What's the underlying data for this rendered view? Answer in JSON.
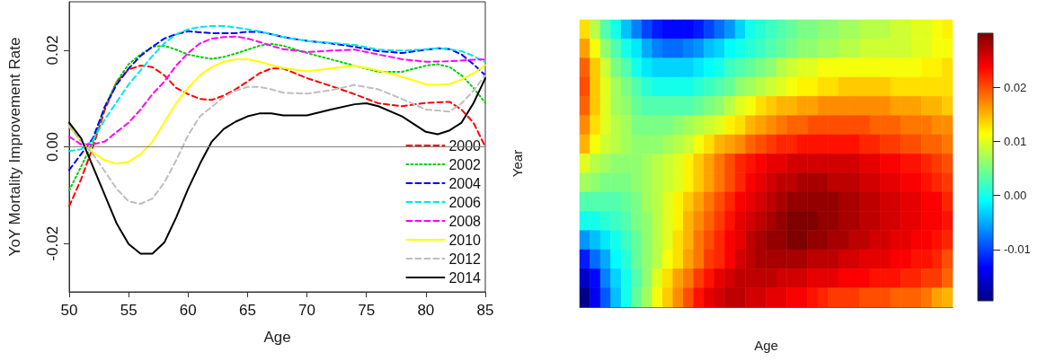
{
  "chart_data": [
    {
      "type": "line",
      "xlabel": "Age",
      "ylabel": "YoY Mortality Improvement Rate",
      "xlim": [
        50,
        85
      ],
      "xticks": [
        50,
        55,
        60,
        65,
        70,
        75,
        80,
        85
      ],
      "ylim": [
        -0.03,
        0.03
      ],
      "yticks": [
        {
          "value": -0.02,
          "label": "-0.02"
        },
        {
          "value": 0,
          "label": "0.00"
        },
        {
          "value": 0.02,
          "label": "0.02"
        }
      ],
      "grid": false,
      "legend": "bottom right",
      "marker": "none",
      "ref_lines": [
        {
          "axis": "y",
          "value": 0,
          "label": null,
          "color": "#808080"
        }
      ],
      "series": [
        {
          "name": "2000",
          "color": "#ff0000",
          "line_style": "dashed",
          "x": [
            50,
            51,
            52,
            53,
            54,
            55,
            56,
            57,
            58,
            59,
            60,
            61,
            62,
            63,
            64,
            65,
            66,
            67,
            68,
            69,
            70,
            72,
            74,
            76,
            78,
            80,
            82,
            83,
            84,
            85
          ],
          "values": [
            -0.0123,
            -0.0067,
            0.0,
            0.0077,
            0.0135,
            0.016,
            0.0168,
            0.0165,
            0.0148,
            0.0122,
            0.0109,
            0.0099,
            0.0097,
            0.0106,
            0.0119,
            0.0135,
            0.0152,
            0.0162,
            0.0162,
            0.0152,
            0.0142,
            0.0126,
            0.0109,
            0.009,
            0.0084,
            0.0091,
            0.0093,
            0.0077,
            0.005,
            0.0
          ]
        },
        {
          "name": "2002",
          "color": "#00cd00",
          "line_style": "dotted",
          "x": [
            50,
            51,
            52,
            53,
            54,
            55,
            56,
            57,
            58,
            59,
            60,
            61,
            62,
            63,
            64,
            65,
            66,
            67,
            68,
            70,
            72,
            74,
            76,
            78,
            80,
            81,
            82,
            83,
            84,
            85
          ],
          "values": [
            -0.009,
            -0.0041,
            0.0011,
            0.0083,
            0.0135,
            0.0171,
            0.0191,
            0.0207,
            0.0209,
            0.0201,
            0.0191,
            0.0186,
            0.0182,
            0.0186,
            0.0193,
            0.0201,
            0.0209,
            0.0213,
            0.0209,
            0.0194,
            0.0181,
            0.0168,
            0.0155,
            0.0155,
            0.0168,
            0.0171,
            0.0165,
            0.0148,
            0.0122,
            0.0091
          ]
        },
        {
          "name": "2004",
          "color": "#0000ff",
          "line_style": "dashed",
          "x": [
            50,
            51,
            52,
            53,
            54,
            55,
            56,
            57,
            58,
            59,
            60,
            61,
            62,
            63,
            64,
            65,
            66,
            67,
            68,
            70,
            72,
            74,
            76,
            78,
            80,
            81,
            82,
            83,
            84,
            85
          ],
          "values": [
            -0.0048,
            -0.0015,
            0.0018,
            0.0083,
            0.0129,
            0.0162,
            0.0188,
            0.0207,
            0.0224,
            0.0233,
            0.0239,
            0.0237,
            0.0235,
            0.0235,
            0.0235,
            0.0238,
            0.0238,
            0.0233,
            0.0227,
            0.0219,
            0.0214,
            0.0207,
            0.0198,
            0.0194,
            0.0201,
            0.0204,
            0.0202,
            0.0191,
            0.0171,
            0.0148
          ]
        },
        {
          "name": "2006",
          "color": "#00e5ee",
          "line_style": "dashed",
          "x": [
            50,
            51,
            52,
            53,
            54,
            55,
            56,
            57,
            58,
            59,
            60,
            61,
            62,
            63,
            64,
            65,
            66,
            67,
            68,
            70,
            72,
            74,
            76,
            78,
            80,
            81,
            82,
            83,
            84,
            85
          ],
          "values": [
            -0.0009,
            -0.0005,
            0.0014,
            0.0057,
            0.0093,
            0.0129,
            0.0158,
            0.0188,
            0.0214,
            0.0233,
            0.0243,
            0.0248,
            0.025,
            0.025,
            0.0247,
            0.0243,
            0.0239,
            0.0233,
            0.0227,
            0.0219,
            0.0215,
            0.0211,
            0.0201,
            0.0199,
            0.0202,
            0.0204,
            0.0202,
            0.0198,
            0.0188,
            0.0175
          ]
        },
        {
          "name": "2008",
          "color": "#ff00ff",
          "line_style": "dashed",
          "x": [
            50,
            51,
            52,
            53,
            54,
            55,
            56,
            57,
            58,
            59,
            60,
            61,
            62,
            63,
            64,
            65,
            66,
            67,
            68,
            70,
            72,
            74,
            76,
            78,
            80,
            82,
            84,
            85
          ],
          "values": [
            0.0021,
            0.0005,
            0.0005,
            0.0011,
            0.0031,
            0.005,
            0.0077,
            0.0109,
            0.0135,
            0.0168,
            0.0194,
            0.0214,
            0.0224,
            0.0227,
            0.0228,
            0.0224,
            0.0217,
            0.0209,
            0.0202,
            0.0196,
            0.0199,
            0.0201,
            0.0191,
            0.0181,
            0.0176,
            0.0177,
            0.018,
            0.0181
          ]
        },
        {
          "name": "2010",
          "color": "#ffff00",
          "line_style": "solid",
          "x": [
            50,
            51,
            52,
            53,
            54,
            55,
            56,
            57,
            58,
            59,
            60,
            61,
            62,
            63,
            64,
            65,
            66,
            67,
            68,
            70,
            72,
            74,
            76,
            78,
            80,
            81,
            82,
            83,
            84,
            85
          ],
          "values": [
            0.0042,
            0.0011,
            -0.0012,
            -0.0028,
            -0.0035,
            -0.0031,
            -0.0015,
            0.0011,
            0.005,
            0.009,
            0.0122,
            0.0148,
            0.0165,
            0.0176,
            0.0181,
            0.0181,
            0.0176,
            0.0169,
            0.0163,
            0.0156,
            0.0162,
            0.0168,
            0.0158,
            0.0145,
            0.0129,
            0.0128,
            0.013,
            0.0139,
            0.0152,
            0.0169
          ]
        },
        {
          "name": "2012",
          "color": "#bebebe",
          "line_style": "dashed",
          "x": [
            50,
            51,
            52,
            53,
            54,
            55,
            56,
            57,
            58,
            59,
            60,
            61,
            62,
            63,
            64,
            65,
            66,
            67,
            68,
            70,
            72,
            74,
            76,
            78,
            80,
            82,
            83,
            84,
            85
          ],
          "values": [
            0.0044,
            0.0011,
            -0.0015,
            -0.0051,
            -0.0087,
            -0.0113,
            -0.0118,
            -0.0107,
            -0.0074,
            -0.0028,
            0.0024,
            0.0063,
            0.0083,
            0.0103,
            0.0116,
            0.0124,
            0.0124,
            0.0119,
            0.0112,
            0.011,
            0.0117,
            0.0128,
            0.0119,
            0.0099,
            0.0077,
            0.0073,
            0.009,
            0.0116,
            0.0148
          ]
        },
        {
          "name": "2014",
          "color": "#000000",
          "line_style": "solid",
          "x": [
            50,
            51,
            52,
            53,
            54,
            55,
            56,
            57,
            58,
            59,
            60,
            61,
            62,
            63,
            64,
            65,
            66,
            67,
            68,
            70,
            72,
            74,
            75,
            76,
            78,
            80,
            81,
            82,
            83,
            84,
            85
          ],
          "values": [
            0.005,
            0.0018,
            -0.0041,
            -0.01,
            -0.0159,
            -0.0201,
            -0.0221,
            -0.0221,
            -0.0198,
            -0.0146,
            -0.0087,
            -0.0035,
            0.0011,
            0.0037,
            0.0052,
            0.0063,
            0.0069,
            0.0069,
            0.0065,
            0.0065,
            0.0077,
            0.0088,
            0.009,
            0.0084,
            0.0063,
            0.0031,
            0.0026,
            0.0034,
            0.005,
            0.009,
            0.0142
          ]
        }
      ]
    },
    {
      "type": "heatmap",
      "xlabel": "Age",
      "ylabel": "Year",
      "categories": [
        null,
        null,
        null,
        null,
        null,
        null,
        null,
        null,
        null,
        null,
        null,
        null,
        null,
        null,
        null,
        null,
        null,
        null,
        null,
        null,
        null,
        null,
        null,
        null,
        null,
        null,
        null,
        null,
        null,
        null,
        null,
        null,
        null,
        null,
        null,
        null
      ],
      "y_categories": [
        null,
        null,
        null,
        null,
        null,
        null,
        null,
        null,
        null,
        null,
        null,
        null,
        null,
        null,
        null
      ],
      "clim": [
        -0.0195,
        0.03
      ],
      "cticks": [
        {
          "value": -0.01,
          "label": "-0.01"
        },
        {
          "value": 0,
          "label": "0.00"
        },
        {
          "value": 0.01,
          "label": "0.01"
        },
        {
          "value": 0.02,
          "label": "0.02"
        }
      ],
      "cells": [
        [
          0.013,
          0.008,
          0.003,
          0.0,
          -0.004,
          -0.007,
          -0.01,
          -0.012,
          -0.013,
          -0.013,
          -0.013,
          -0.012,
          -0.01,
          -0.008,
          -0.006,
          -0.003,
          0.0,
          0.001,
          0.002,
          0.003,
          0.004,
          0.005,
          0.005,
          0.006,
          0.006,
          0.007,
          0.007,
          0.008,
          0.008,
          0.008,
          0.009,
          0.009,
          0.01,
          0.01,
          0.011,
          0.012
        ],
        [
          0.016,
          0.011,
          0.006,
          0.003,
          0.0,
          -0.002,
          -0.005,
          -0.007,
          -0.008,
          -0.008,
          -0.007,
          -0.006,
          -0.004,
          -0.003,
          -0.001,
          0.0,
          0.001,
          0.002,
          0.003,
          0.004,
          0.005,
          0.006,
          0.006,
          0.007,
          0.007,
          0.008,
          0.008,
          0.009,
          0.009,
          0.009,
          0.009,
          0.009,
          0.01,
          0.01,
          0.011,
          0.011
        ],
        [
          0.019,
          0.014,
          0.009,
          0.005,
          0.003,
          0.0,
          -0.002,
          -0.003,
          -0.003,
          -0.003,
          -0.003,
          -0.002,
          -0.001,
          0.0,
          0.002,
          0.003,
          0.004,
          0.005,
          0.006,
          0.008,
          0.009,
          0.01,
          0.01,
          0.011,
          0.011,
          0.011,
          0.011,
          0.011,
          0.011,
          0.011,
          0.011,
          0.011,
          0.011,
          0.012,
          0.012,
          0.013
        ],
        [
          0.02,
          0.014,
          0.01,
          0.007,
          0.005,
          0.003,
          0.001,
          0.0,
          0.0,
          0.0,
          0.0,
          0.001,
          0.002,
          0.003,
          0.004,
          0.006,
          0.007,
          0.008,
          0.009,
          0.01,
          0.011,
          0.012,
          0.012,
          0.013,
          0.013,
          0.014,
          0.014,
          0.014,
          0.014,
          0.014,
          0.013,
          0.013,
          0.013,
          0.013,
          0.013,
          0.013
        ],
        [
          0.019,
          0.014,
          0.01,
          0.007,
          0.006,
          0.004,
          0.003,
          0.003,
          0.003,
          0.003,
          0.003,
          0.004,
          0.005,
          0.006,
          0.008,
          0.01,
          0.011,
          0.013,
          0.014,
          0.015,
          0.015,
          0.016,
          0.016,
          0.017,
          0.017,
          0.017,
          0.017,
          0.017,
          0.017,
          0.017,
          0.016,
          0.016,
          0.016,
          0.015,
          0.015,
          0.014
        ],
        [
          0.017,
          0.013,
          0.01,
          0.008,
          0.007,
          0.005,
          0.005,
          0.005,
          0.005,
          0.006,
          0.007,
          0.008,
          0.009,
          0.01,
          0.012,
          0.013,
          0.015,
          0.016,
          0.017,
          0.018,
          0.019,
          0.019,
          0.02,
          0.02,
          0.02,
          0.02,
          0.02,
          0.02,
          0.019,
          0.019,
          0.019,
          0.018,
          0.018,
          0.018,
          0.017,
          0.017
        ],
        [
          0.015,
          0.011,
          0.009,
          0.008,
          0.007,
          0.006,
          0.006,
          0.006,
          0.007,
          0.008,
          0.009,
          0.011,
          0.013,
          0.015,
          0.016,
          0.017,
          0.019,
          0.02,
          0.021,
          0.022,
          0.022,
          0.023,
          0.023,
          0.023,
          0.023,
          0.023,
          0.023,
          0.022,
          0.022,
          0.021,
          0.021,
          0.02,
          0.02,
          0.019,
          0.019,
          0.018
        ],
        [
          0.01,
          0.008,
          0.007,
          0.006,
          0.006,
          0.006,
          0.007,
          0.008,
          0.009,
          0.01,
          0.012,
          0.014,
          0.016,
          0.018,
          0.02,
          0.022,
          0.023,
          0.024,
          0.025,
          0.025,
          0.026,
          0.026,
          0.026,
          0.026,
          0.026,
          0.026,
          0.026,
          0.025,
          0.025,
          0.024,
          0.024,
          0.023,
          0.023,
          0.022,
          0.021,
          0.02
        ],
        [
          0.007,
          0.006,
          0.005,
          0.005,
          0.005,
          0.006,
          0.007,
          0.008,
          0.009,
          0.01,
          0.012,
          0.014,
          0.016,
          0.018,
          0.02,
          0.022,
          0.024,
          0.025,
          0.026,
          0.027,
          0.027,
          0.028,
          0.028,
          0.028,
          0.027,
          0.027,
          0.027,
          0.026,
          0.026,
          0.025,
          0.025,
          0.024,
          0.024,
          0.023,
          0.022,
          0.021
        ],
        [
          0.003,
          0.003,
          0.003,
          0.003,
          0.004,
          0.005,
          0.007,
          0.008,
          0.01,
          0.012,
          0.014,
          0.016,
          0.018,
          0.02,
          0.022,
          0.024,
          0.025,
          0.026,
          0.027,
          0.028,
          0.029,
          0.029,
          0.029,
          0.029,
          0.029,
          0.028,
          0.028,
          0.027,
          0.027,
          0.026,
          0.026,
          0.025,
          0.025,
          0.024,
          0.024,
          0.022
        ],
        [
          0.0,
          0.0,
          0.001,
          0.002,
          0.003,
          0.005,
          0.006,
          0.008,
          0.01,
          0.012,
          0.015,
          0.017,
          0.019,
          0.021,
          0.023,
          0.025,
          0.026,
          0.027,
          0.028,
          0.029,
          0.03,
          0.03,
          0.03,
          0.029,
          0.029,
          0.028,
          0.028,
          0.027,
          0.027,
          0.026,
          0.026,
          0.025,
          0.025,
          0.024,
          0.024,
          0.023
        ],
        [
          -0.006,
          -0.004,
          -0.002,
          0.0,
          0.002,
          0.004,
          0.006,
          0.008,
          0.01,
          0.013,
          0.015,
          0.018,
          0.02,
          0.022,
          0.024,
          0.025,
          0.027,
          0.028,
          0.029,
          0.029,
          0.03,
          0.03,
          0.029,
          0.029,
          0.028,
          0.028,
          0.027,
          0.027,
          0.026,
          0.026,
          0.025,
          0.025,
          0.024,
          0.024,
          0.023,
          0.022
        ],
        [
          -0.012,
          -0.008,
          -0.005,
          -0.001,
          0.001,
          0.004,
          0.006,
          0.008,
          0.011,
          0.013,
          0.016,
          0.018,
          0.021,
          0.022,
          0.024,
          0.026,
          0.027,
          0.028,
          0.028,
          0.028,
          0.028,
          0.028,
          0.027,
          0.027,
          0.027,
          0.026,
          0.026,
          0.025,
          0.025,
          0.025,
          0.024,
          0.024,
          0.023,
          0.023,
          0.022,
          0.02
        ],
        [
          -0.016,
          -0.013,
          -0.007,
          -0.003,
          0.0,
          0.003,
          0.006,
          0.01,
          0.013,
          0.016,
          0.018,
          0.021,
          0.023,
          0.025,
          0.026,
          0.027,
          0.027,
          0.027,
          0.027,
          0.026,
          0.026,
          0.026,
          0.025,
          0.025,
          0.025,
          0.024,
          0.024,
          0.024,
          0.023,
          0.023,
          0.023,
          0.022,
          0.022,
          0.021,
          0.021,
          0.019
        ],
        [
          -0.019,
          -0.014,
          -0.009,
          -0.004,
          0.0,
          0.004,
          0.007,
          0.011,
          0.014,
          0.017,
          0.02,
          0.023,
          0.025,
          0.026,
          0.027,
          0.027,
          0.026,
          0.026,
          0.025,
          0.025,
          0.024,
          0.024,
          0.023,
          0.022,
          0.021,
          0.021,
          0.021,
          0.02,
          0.02,
          0.02,
          0.019,
          0.019,
          0.019,
          0.018,
          0.016,
          0.015
        ]
      ]
    }
  ]
}
